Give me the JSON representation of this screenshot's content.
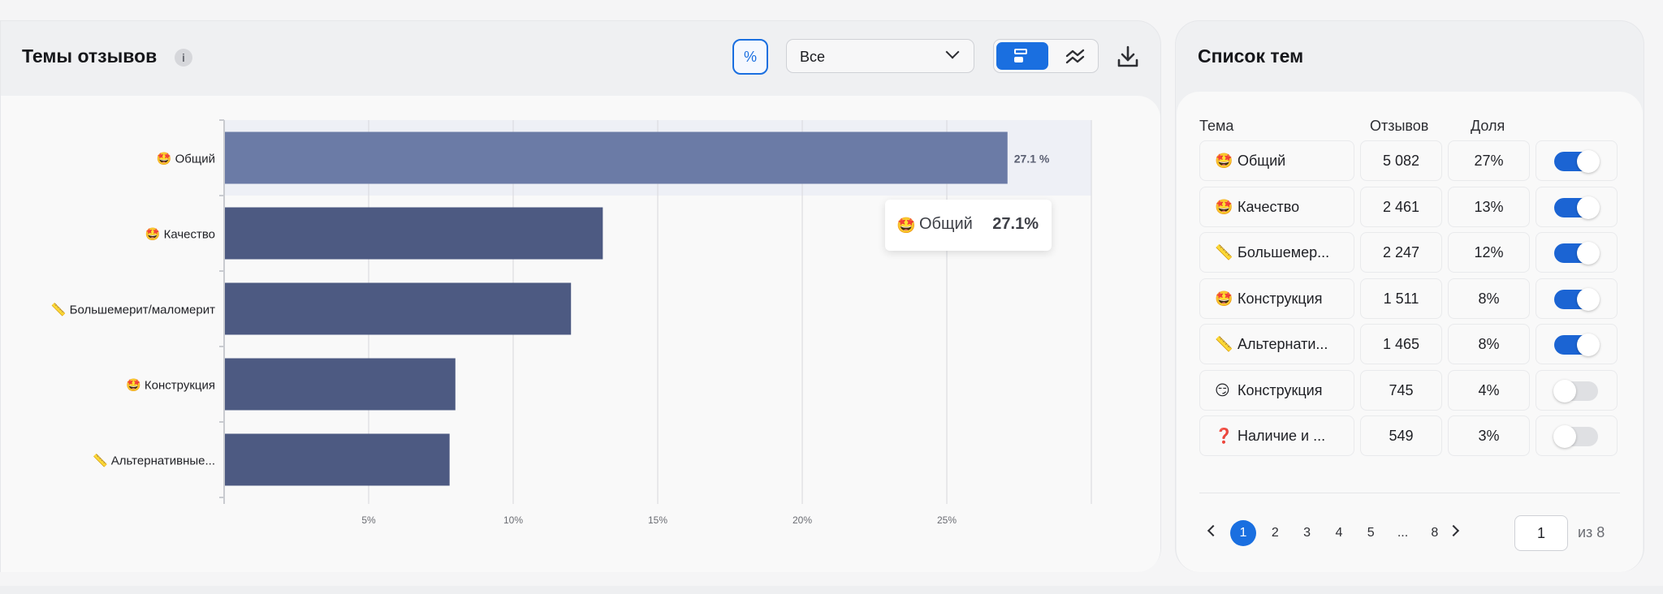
{
  "left_panel": {
    "title": "Темы отзывов",
    "info_icon": "info-icon",
    "percent_button": "%",
    "filter_select": {
      "value": "Все"
    },
    "view_modes": [
      "bars-view",
      "trend-view"
    ],
    "active_view": "bars-view",
    "download_icon": "download-icon"
  },
  "chart_data": {
    "type": "bar",
    "orientation": "horizontal",
    "categories": [
      "Общий",
      "Качество",
      "Большемерит/маломерит",
      "Конструкция",
      "Альтернативные..."
    ],
    "category_emojis": [
      "🤩",
      "🤩",
      "📏",
      "🤩",
      "📏"
    ],
    "values": [
      27.1,
      13.1,
      12.0,
      8.0,
      7.8
    ],
    "value_unit": "%",
    "highlighted_index": 0,
    "highlight_label": "27.1 %",
    "x_ticks": [
      "5%",
      "10%",
      "15%",
      "20%",
      "25%"
    ],
    "x_tick_values": [
      5,
      10,
      15,
      20,
      25
    ],
    "xlim": [
      0,
      30
    ],
    "grid": true,
    "colors": {
      "bar": "#4d5a82",
      "bar_highlight": "#6b7ba6",
      "band_highlight": "#eef0f6"
    },
    "tooltip": {
      "emoji": "🤩",
      "name": "Общий",
      "value": "27.1%"
    }
  },
  "right_panel": {
    "title": "Список тем",
    "headers": {
      "topic": "Тема",
      "reviews": "Отзывов",
      "share": "Доля"
    },
    "rows": [
      {
        "emoji": "🤩",
        "name": "Общий",
        "count": "5 082",
        "share": "27%",
        "enabled": true
      },
      {
        "emoji": "🤩",
        "name": "Качество",
        "count": "2 461",
        "share": "13%",
        "enabled": true
      },
      {
        "emoji": "📏",
        "name": "Большемер...",
        "count": "2 247",
        "share": "12%",
        "enabled": true
      },
      {
        "emoji": "🤩",
        "name": "Конструкция",
        "count": "1 511",
        "share": "8%",
        "enabled": true
      },
      {
        "emoji": "📏",
        "name": "Альтернати...",
        "count": "1 465",
        "share": "8%",
        "enabled": true
      },
      {
        "emoji": "😏",
        "name": "Конструкция",
        "count": "745",
        "share": "4%",
        "enabled": false
      },
      {
        "emoji": "❓",
        "name": "Наличие и ...",
        "count": "549",
        "share": "3%",
        "enabled": false
      }
    ],
    "pagination": {
      "pages": [
        "1",
        "2",
        "3",
        "4",
        "5",
        "...",
        "8"
      ],
      "current": "1",
      "input_value": "1",
      "of_label": "из 8"
    }
  }
}
